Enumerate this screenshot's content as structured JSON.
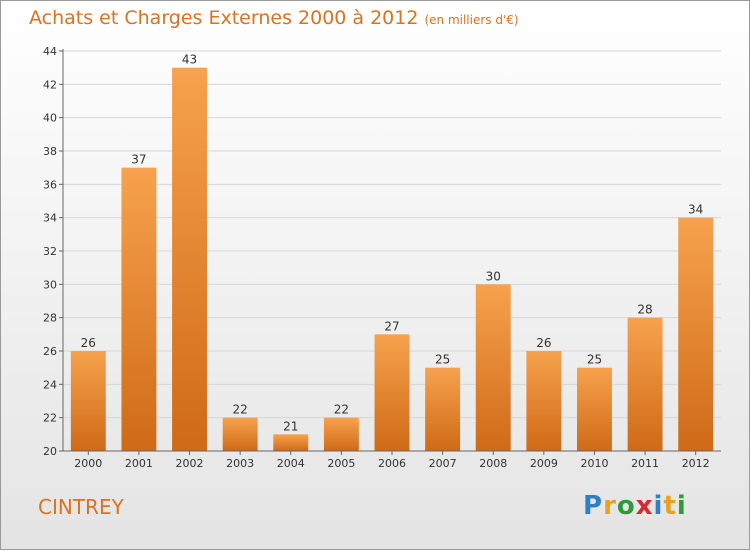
{
  "title": "Achats et Charges Externes 2000 à 2012",
  "subtitle": "(en milliers d'€)",
  "commune": "CINTREY",
  "logo": {
    "text": "Proxiti",
    "letters": [
      {
        "ch": "P",
        "color": "#2f7fc8"
      },
      {
        "ch": "r",
        "color": "#e8a21e"
      },
      {
        "ch": "o",
        "color": "#2f9a3a"
      },
      {
        "ch": "x",
        "color": "#d9282f"
      },
      {
        "ch": "i",
        "color": "#2f7fc8"
      },
      {
        "ch": "t",
        "color": "#e8a21e"
      },
      {
        "ch": "i",
        "color": "#2f9a3a"
      }
    ]
  },
  "colors": {
    "bar_top": "#f7a24e",
    "bar_bottom": "#cf6a17",
    "title": "#d9731f"
  },
  "chart_data": {
    "type": "bar",
    "categories": [
      "2000",
      "2001",
      "2002",
      "2003",
      "2004",
      "2005",
      "2006",
      "2007",
      "2008",
      "2009",
      "2010",
      "2011",
      "2012"
    ],
    "values": [
      26,
      37,
      43,
      22,
      21,
      22,
      27,
      25,
      30,
      26,
      25,
      28,
      34
    ],
    "ylim": [
      20,
      44
    ],
    "yticks": [
      20,
      22,
      24,
      26,
      28,
      30,
      32,
      34,
      36,
      38,
      40,
      42,
      44
    ],
    "grid": true
  }
}
